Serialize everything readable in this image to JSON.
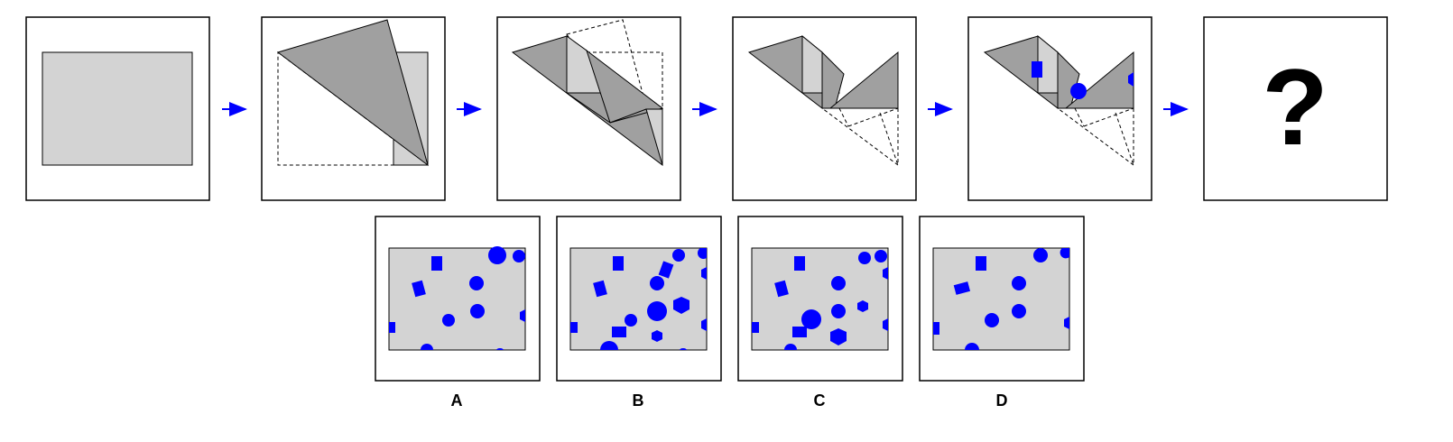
{
  "puzzle": {
    "question_symbol": "?",
    "sequence_steps": 6,
    "options": [
      {
        "id": "A",
        "label": "A"
      },
      {
        "id": "B",
        "label": "B"
      },
      {
        "id": "C",
        "label": "C"
      },
      {
        "id": "D",
        "label": "D"
      }
    ]
  },
  "colors": {
    "paper_light": "#d3d3d3",
    "paper_dark": "#a0a0a0",
    "punch": "#0000ff",
    "arrow": "#0000ff",
    "frame": "#000000"
  }
}
